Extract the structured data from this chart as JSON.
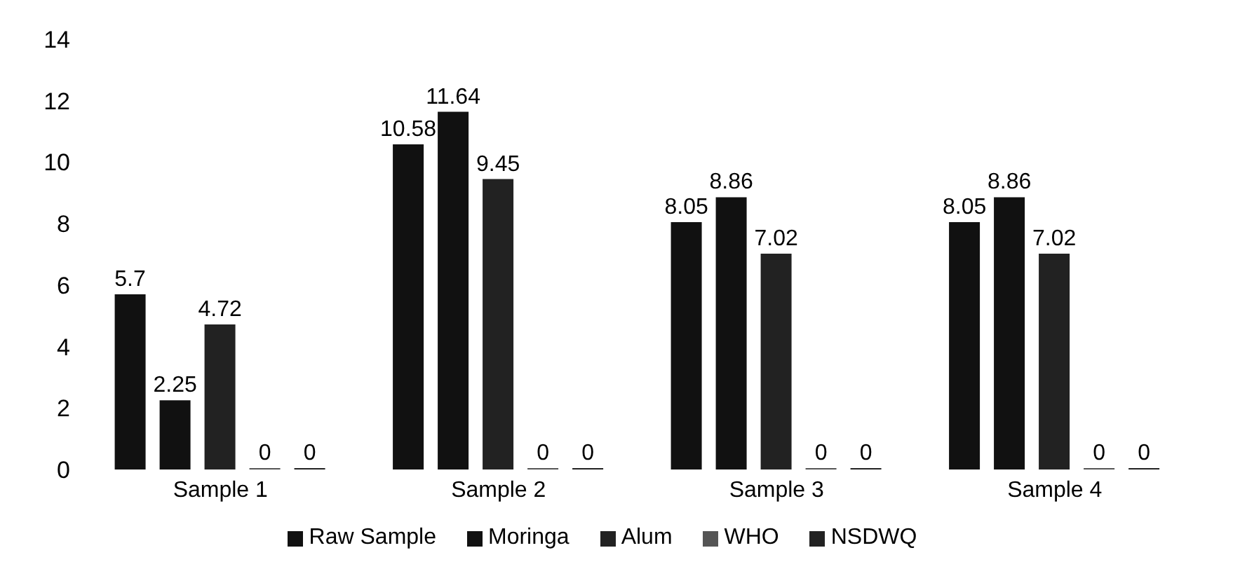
{
  "chart_data": {
    "type": "bar",
    "categories": [
      "Sample 1",
      "Sample 2",
      "Sample 3",
      "Sample 4"
    ],
    "series": [
      {
        "name": "Raw Sample",
        "color": "#111111",
        "values": [
          5.7,
          10.58,
          8.05,
          8.05
        ]
      },
      {
        "name": "Moringa",
        "color": "#111111",
        "values": [
          2.25,
          11.64,
          8.86,
          8.86
        ]
      },
      {
        "name": "Alum",
        "color": "#222222",
        "values": [
          4.72,
          9.45,
          7.02,
          7.02
        ]
      },
      {
        "name": "WHO",
        "color": "#555555",
        "values": [
          0,
          0,
          0,
          0
        ]
      },
      {
        "name": "NSDWQ",
        "color": "#222222",
        "values": [
          0,
          0,
          0,
          0
        ]
      }
    ],
    "ylim": [
      0,
      14
    ],
    "yticks": [
      0,
      2,
      4,
      6,
      8,
      10,
      12,
      14
    ],
    "data_labels": true,
    "legend": "bottom",
    "grid": false
  }
}
